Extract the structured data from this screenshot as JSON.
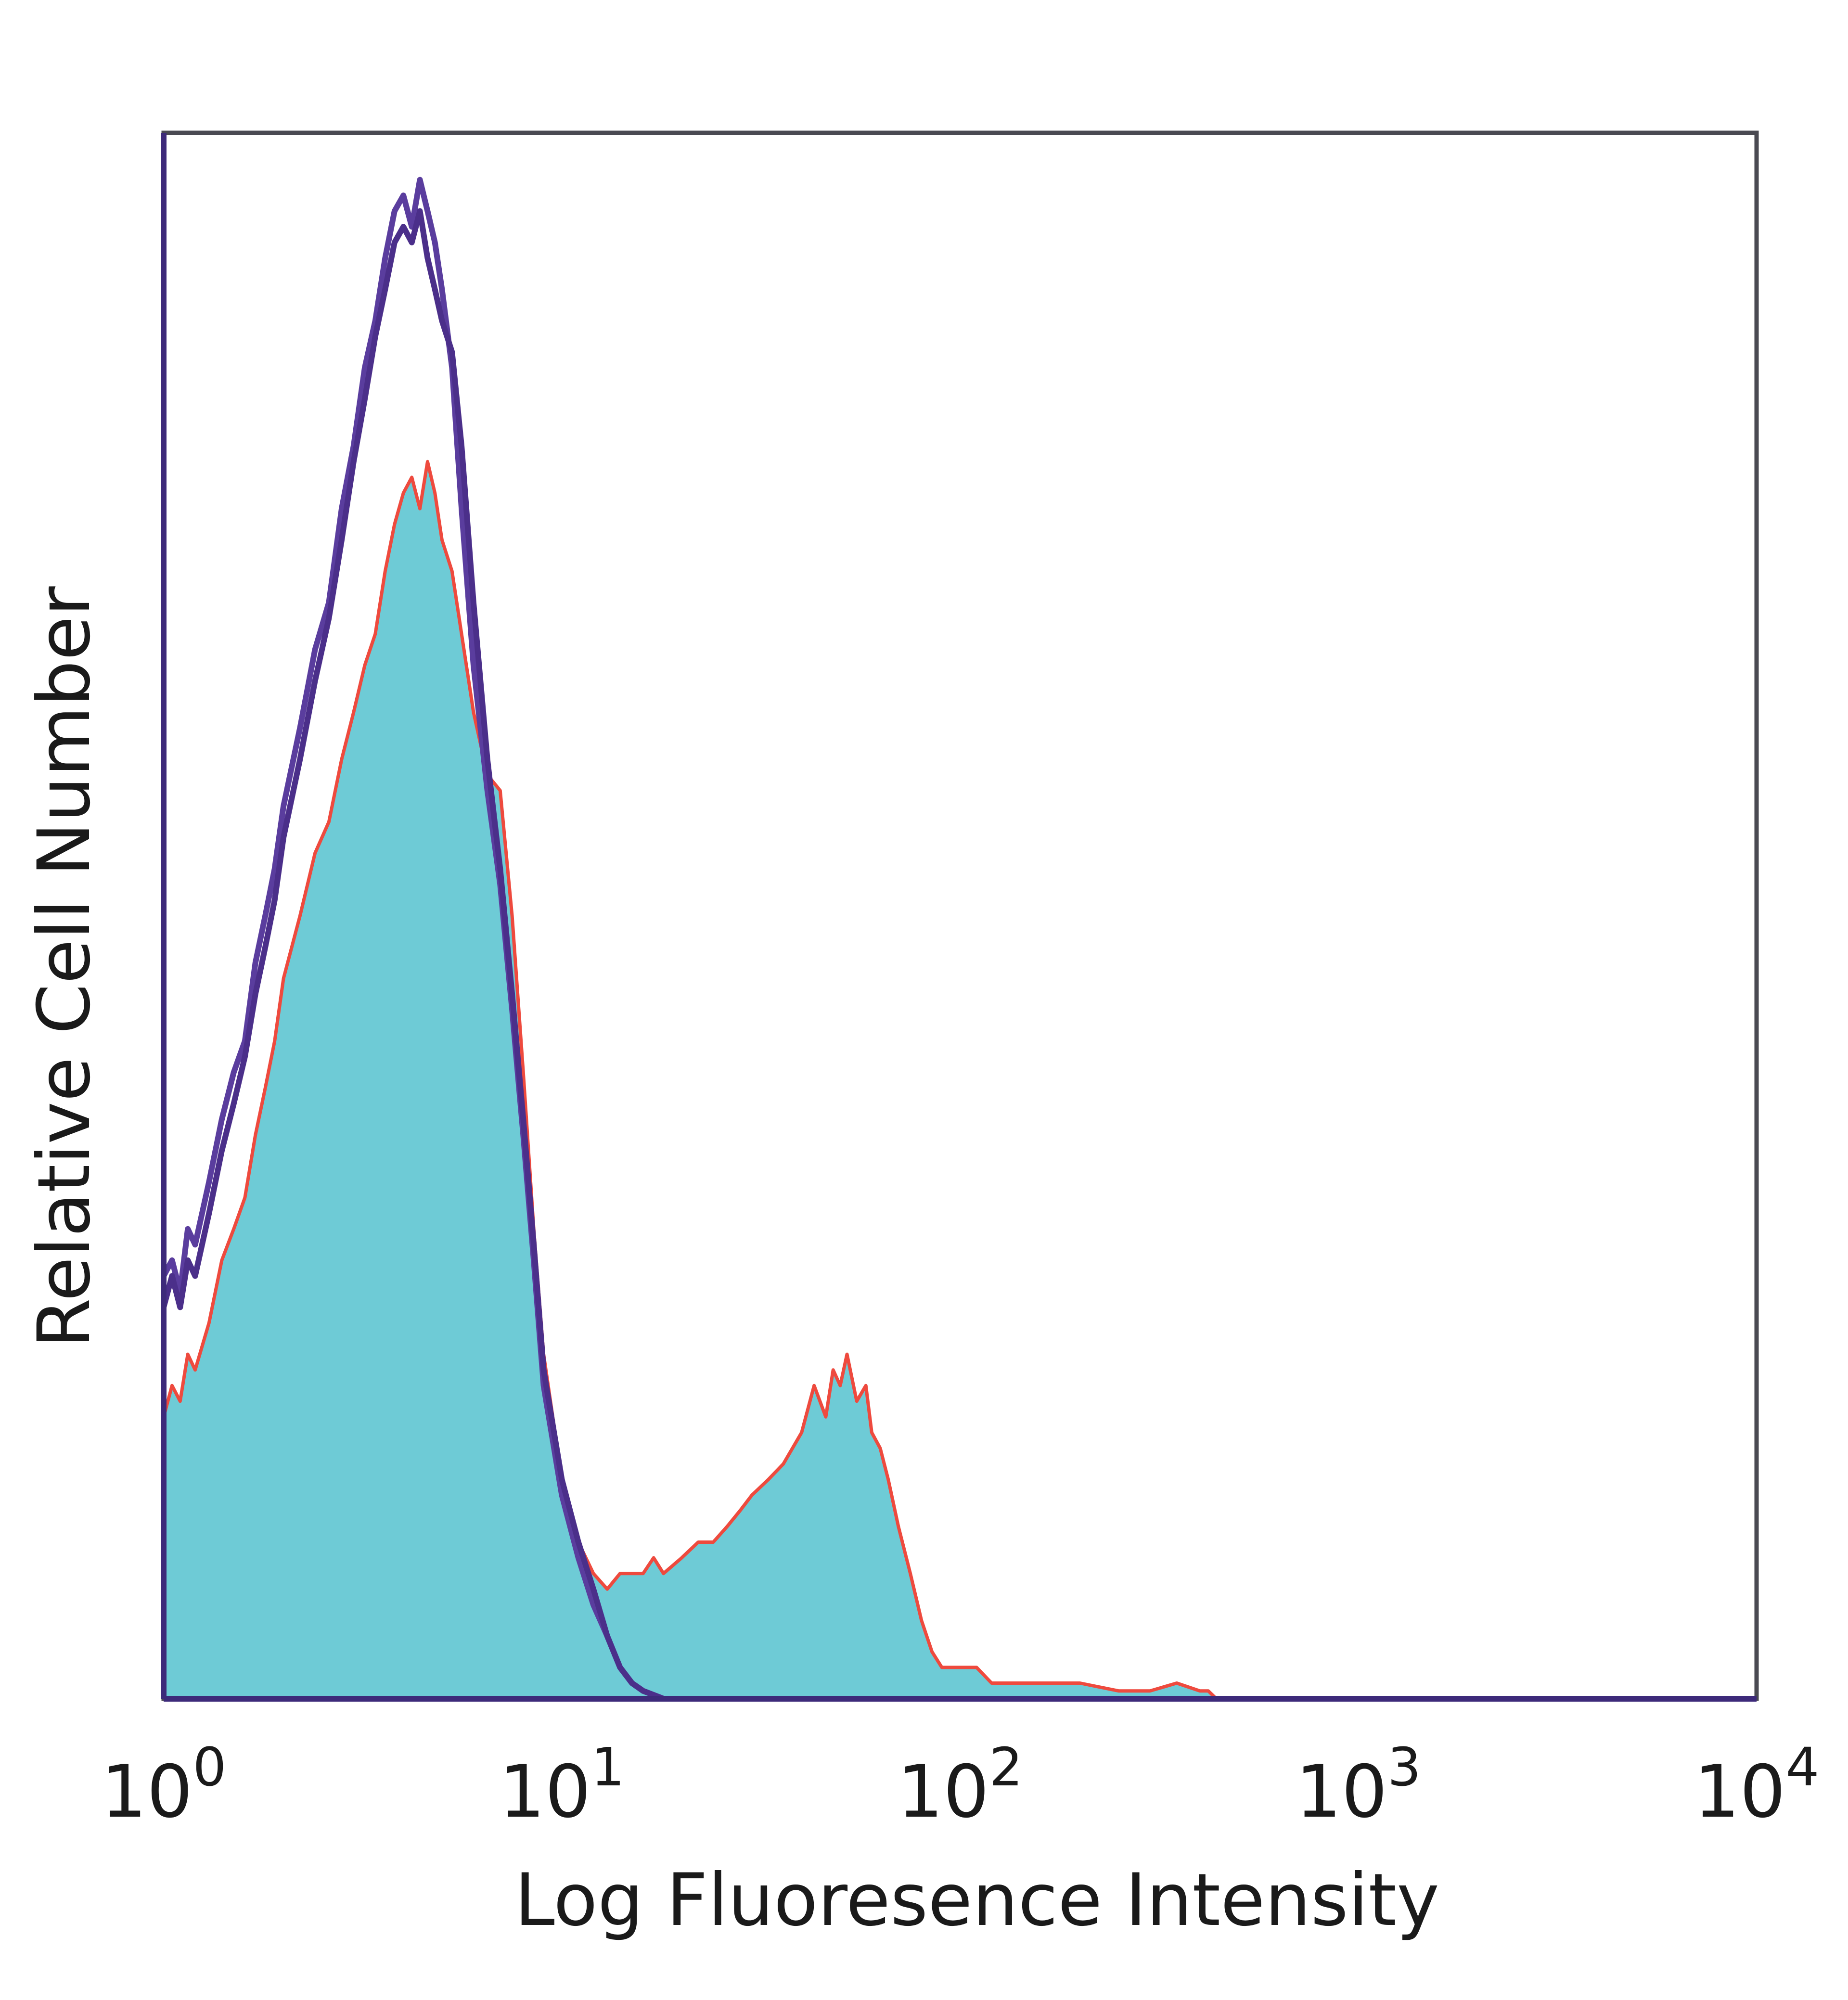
{
  "chart_data": {
    "type": "area",
    "title": "",
    "xlabel": "Log Fluoresence Intensity",
    "ylabel": "Relative Cell Number",
    "x_scale": "log",
    "xlim": [
      1,
      10000
    ],
    "ylim": [
      0,
      100
    ],
    "grid": false,
    "legend": "none",
    "x_ticks": [
      {
        "value": 1,
        "base": "10",
        "exp": "0"
      },
      {
        "value": 10,
        "base": "10",
        "exp": "1"
      },
      {
        "value": 100,
        "base": "10",
        "exp": "2"
      },
      {
        "value": 1000,
        "base": "10",
        "exp": "3"
      },
      {
        "value": 10000,
        "base": "10",
        "exp": "4"
      }
    ],
    "series": [
      {
        "role": "filled-histogram",
        "fill_color": "#6ecbd6",
        "stroke_color": "#ee4a3e",
        "x": [
          1.0,
          1.05,
          1.1,
          1.15,
          1.2,
          1.3,
          1.4,
          1.5,
          1.6,
          1.7,
          1.8,
          1.9,
          2.0,
          2.2,
          2.4,
          2.6,
          2.8,
          3.0,
          3.2,
          3.4,
          3.6,
          3.8,
          4.0,
          4.2,
          4.4,
          4.6,
          4.8,
          5.0,
          5.3,
          5.6,
          6.0,
          6.5,
          7.0,
          7.5,
          8.0,
          8.5,
          9.0,
          10.0,
          11.0,
          12.0,
          13.0,
          14.0,
          15.0,
          16.0,
          17.0,
          18.0,
          20.0,
          22.0,
          24.0,
          26.0,
          28.0,
          30.0,
          33.0,
          36.0,
          40.0,
          43.0,
          46.0,
          48.0,
          50.0,
          52.0,
          55.0,
          58.0,
          60.0,
          63.0,
          66.0,
          70.0,
          75.0,
          80.0,
          85.0,
          90.0,
          95.0,
          100.0,
          110.0,
          120.0,
          130.0,
          150.0,
          170.0,
          200.0,
          250.0,
          300.0,
          350.0,
          400.0,
          420.0,
          440.0
        ],
        "values": [
          18,
          20,
          19,
          22,
          21,
          24,
          28,
          30,
          32,
          36,
          39,
          42,
          46,
          50,
          54,
          56,
          60,
          63,
          66,
          68,
          72,
          75,
          77,
          78,
          76,
          79,
          77,
          74,
          72,
          68,
          63,
          59,
          58,
          50,
          40,
          30,
          22,
          14,
          10,
          8,
          7,
          8,
          8,
          8,
          9,
          8,
          9,
          10,
          10,
          11,
          12,
          13,
          14,
          15,
          17,
          20,
          18,
          21,
          20,
          22,
          19,
          20,
          17,
          16,
          14,
          11,
          8,
          5,
          3,
          2,
          2,
          2,
          2,
          1,
          1,
          1,
          1,
          1,
          0.5,
          0.5,
          1,
          0.5,
          0.5,
          0
        ]
      },
      {
        "role": "outline-histogram-1",
        "stroke_color": "#5a3d9e",
        "x": [
          1.0,
          1.05,
          1.1,
          1.15,
          1.2,
          1.3,
          1.4,
          1.5,
          1.6,
          1.7,
          1.8,
          1.9,
          2.0,
          2.2,
          2.4,
          2.6,
          2.8,
          3.0,
          3.2,
          3.4,
          3.6,
          3.8,
          4.0,
          4.2,
          4.4,
          4.6,
          4.8,
          5.0,
          5.3,
          5.6,
          6.0,
          6.5,
          7.0,
          7.5,
          8.0,
          8.5,
          9.0,
          10.0,
          11.0,
          12.0,
          13.0,
          14.0,
          15.0,
          16.0,
          18.0,
          20.0,
          25.0,
          30.0,
          50.0,
          100.0,
          200.0,
          400.0,
          10000.0
        ],
        "values": [
          27,
          28,
          26,
          30,
          29,
          33,
          37,
          40,
          42,
          47,
          50,
          53,
          57,
          62,
          67,
          70,
          76,
          80,
          85,
          88,
          92,
          95,
          96,
          94,
          97,
          95,
          93,
          90,
          85,
          76,
          66,
          58,
          52,
          44,
          36,
          28,
          20,
          13,
          9,
          6,
          4,
          2,
          1,
          0.5,
          0,
          0,
          0,
          0,
          0,
          0,
          0,
          0,
          0
        ]
      },
      {
        "role": "outline-histogram-2",
        "stroke_color": "#4b2f8a",
        "x": [
          1.0,
          1.05,
          1.1,
          1.15,
          1.2,
          1.3,
          1.4,
          1.5,
          1.6,
          1.7,
          1.8,
          1.9,
          2.0,
          2.2,
          2.4,
          2.6,
          2.8,
          3.0,
          3.2,
          3.4,
          3.6,
          3.8,
          4.0,
          4.2,
          4.4,
          4.6,
          4.8,
          5.0,
          5.3,
          5.6,
          6.0,
          6.5,
          7.0,
          7.5,
          8.0,
          8.5,
          9.0,
          10.0,
          11.0,
          12.0,
          13.0,
          14.0,
          15.0,
          16.0,
          18.0,
          20.0,
          25.0,
          30.0,
          50.0,
          100.0,
          200.0,
          400.0,
          10000.0
        ],
        "values": [
          25,
          27,
          25,
          28,
          27,
          31,
          35,
          38,
          41,
          45,
          48,
          51,
          55,
          60,
          65,
          69,
          74,
          79,
          83,
          87,
          90,
          93,
          94,
          93,
          95,
          92,
          90,
          88,
          86,
          80,
          70,
          60,
          53,
          45,
          37,
          29,
          21,
          14,
          10,
          7,
          4,
          2,
          1,
          0.5,
          0,
          0,
          0,
          0,
          0,
          0,
          0,
          0,
          0
        ]
      }
    ]
  }
}
